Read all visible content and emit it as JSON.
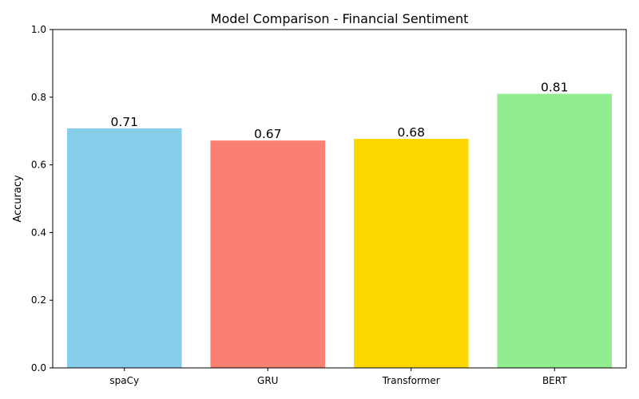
{
  "chart_data": {
    "type": "bar",
    "title": "Model Comparison - Financial Sentiment",
    "xlabel": "",
    "ylabel": "Accuracy",
    "categories": [
      "spaCy",
      "GRU",
      "Transformer",
      "BERT"
    ],
    "values": [
      0.708,
      0.672,
      0.677,
      0.81
    ],
    "data_labels": [
      "0.71",
      "0.67",
      "0.68",
      "0.81"
    ],
    "colors": [
      "#87CEEB",
      "#FA8072",
      "#FFD700",
      "#90EE90"
    ],
    "ylim": [
      0,
      1.0
    ],
    "yticks": [
      "0.0",
      "0.2",
      "0.4",
      "0.6",
      "0.8",
      "1.0"
    ],
    "ytick_values": [
      0,
      0.2,
      0.4,
      0.6,
      0.8,
      1.0
    ],
    "grid": false,
    "legend": "none"
  }
}
